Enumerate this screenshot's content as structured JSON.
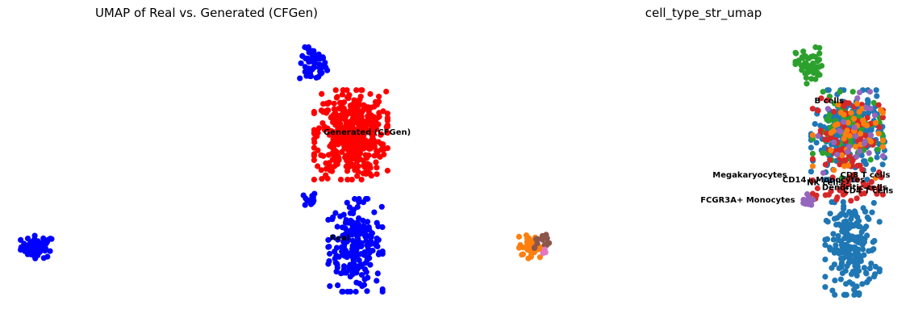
{
  "chart_data": [
    {
      "type": "scatter",
      "title": "UMAP of Real vs. Generated (CFGen)",
      "xlabel": "",
      "ylabel": "",
      "grid": false,
      "axes_visible": false,
      "xlim": [
        -8,
        16
      ],
      "ylim": [
        -4,
        14
      ],
      "colors": {
        "Real": "#0000ff",
        "Generated (CFGen)": "#ff0000"
      },
      "clusters": [
        {
          "series": "Real",
          "cx": -7.1,
          "cy": 0.4,
          "sx": 0.55,
          "sy": 0.35,
          "n": 60
        },
        {
          "series": "Real",
          "cx": 11.0,
          "cy": 11.9,
          "sx": 0.45,
          "sy": 0.55,
          "n": 55
        },
        {
          "series": "Real",
          "cx": 10.8,
          "cy": 3.4,
          "sx": 0.2,
          "sy": 0.25,
          "n": 15
        },
        {
          "series": "Real",
          "cx": 13.8,
          "cy": 0.5,
          "sx": 0.85,
          "sy": 1.4,
          "n": 230
        },
        {
          "series": "Generated (CFGen)",
          "cx": 13.5,
          "cy": 7.5,
          "sx": 1.15,
          "sy": 1.35,
          "n": 460
        }
      ],
      "annotations": [
        {
          "text": "Generated (CFGen)",
          "x": 11.7,
          "y": 7.5
        },
        {
          "text": "Real",
          "x": 12.1,
          "y": 0.8
        }
      ]
    },
    {
      "type": "scatter",
      "title": "cell_type_str_umap",
      "xlabel": "",
      "ylabel": "",
      "grid": false,
      "axes_visible": false,
      "xlim": [
        -8,
        16
      ],
      "ylim": [
        -4,
        14
      ],
      "colors": {
        "B cells": "#2ca02c",
        "CD4 T cells": "#1f77b4",
        "CD14+ Monocytes": "#ff7f0e",
        "FCGR3A+ Monocytes": "#8c564b",
        "Dendritic cells": "#e377c2",
        "NK cells": "#d62728",
        "CD8 T cells": "#d62728",
        "Megakaryocytes": "#9467bd"
      },
      "clusters": [
        {
          "series": "B cells",
          "cx": 11.0,
          "cy": 11.9,
          "sx": 0.45,
          "sy": 0.55,
          "n": 55
        },
        {
          "series": "CD4 T cells",
          "cx": 13.8,
          "cy": 0.3,
          "sx": 0.85,
          "sy": 1.4,
          "n": 210
        },
        {
          "series": "CD4 T cells",
          "cx": 13.5,
          "cy": 7.5,
          "sx": 1.15,
          "sy": 1.35,
          "n": 230
        },
        {
          "series": "B cells",
          "cx": 13.5,
          "cy": 7.5,
          "sx": 1.1,
          "sy": 1.3,
          "n": 70
        },
        {
          "series": "CD8 T cells",
          "cx": 13.5,
          "cy": 7.5,
          "sx": 1.1,
          "sy": 1.3,
          "n": 80
        },
        {
          "series": "CD14+ Monocytes",
          "cx": 13.5,
          "cy": 7.5,
          "sx": 1.1,
          "sy": 1.3,
          "n": 45
        },
        {
          "series": "Megakaryocytes",
          "cx": 13.5,
          "cy": 7.5,
          "sx": 1.1,
          "sy": 1.3,
          "n": 25
        },
        {
          "series": "NK cells",
          "cx": 13.5,
          "cy": 3.9,
          "sx": 1.1,
          "sy": 0.45,
          "n": 40
        },
        {
          "series": "Megakaryocytes",
          "cx": 10.8,
          "cy": 3.4,
          "sx": 0.2,
          "sy": 0.25,
          "n": 15
        },
        {
          "series": "CD14+ Monocytes",
          "cx": -7.3,
          "cy": 0.4,
          "sx": 0.4,
          "sy": 0.35,
          "n": 45
        },
        {
          "series": "FCGR3A+ Monocytes",
          "cx": -6.6,
          "cy": 0.7,
          "sx": 0.25,
          "sy": 0.25,
          "n": 15
        },
        {
          "series": "Dendritic cells",
          "cx": -6.4,
          "cy": 0.2,
          "sx": 0.1,
          "sy": 0.2,
          "n": 3
        }
      ],
      "annotations": [
        {
          "text": "B cells",
          "x": 11.3,
          "y": 9.5
        },
        {
          "text": "CD8 T cells",
          "x": 13.0,
          "y": 4.8
        },
        {
          "text": "Megakaryocytes",
          "x": 4.6,
          "y": 4.8
        },
        {
          "text": "CD14+ Monocytes",
          "x": 9.2,
          "y": 4.5
        },
        {
          "text": "NK cells",
          "x": 10.8,
          "y": 4.3
        },
        {
          "text": "Dendritic cells",
          "x": 11.8,
          "y": 4.0
        },
        {
          "text": "CD4 T cells",
          "x": 13.2,
          "y": 3.8
        },
        {
          "text": "FCGR3A+ Monocytes",
          "x": 3.8,
          "y": 3.2
        }
      ]
    }
  ]
}
